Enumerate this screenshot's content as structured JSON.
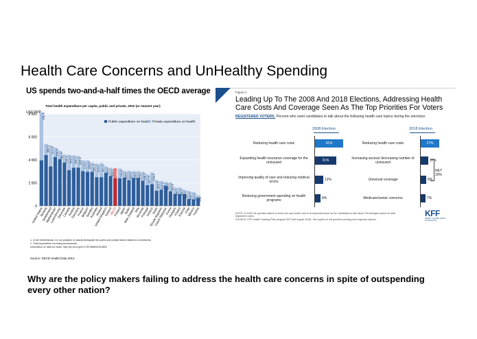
{
  "slide": {
    "title": "Health Care Concerns and UnHealthy Spending",
    "question": "Why are the policy makers failing to address the health care concerns in spite of outspending every other nation?"
  },
  "oecd": {
    "title": "US spends two-and-a-half times the OECD average",
    "subtitle": "Total health expenditure per capita, public and private, 2010 (or nearest year)",
    "unit": "USD PPP",
    "notes": [
      "1.  In the Netherlands, it is not possible to clearly distinguish the public and private share related to investments.",
      "2.  Total expenditure excluding investments.",
      "Information on data for Israel: http://dx.doi.org/10.1787/888932315602"
    ],
    "source": "Source: OECD Health Data 2012.",
    "colors": {
      "public": "#2e5e9c",
      "private": "#a9c2e0",
      "oecd": "#c0282e",
      "plot_bg": "#e8eef7"
    }
  },
  "kff": {
    "figure_label": "Figure 1",
    "title_lines": [
      "Leading Up To The 2008 And 2018 Elections, Addressing Health",
      "Care Costs And Coverage Seen As The Top Priorities For Voters"
    ],
    "subtitle_reg": "REGISTERED VOTERS:",
    "subtitle_rest": " Percent who want candidates to talk about the following health care topics during the elections:",
    "col_2008": "2008 Election",
    "col_2018": "2018 Election",
    "net_label": "NET",
    "net_value": "20%",
    "note_lines": [
      "NOTE: In 2018, the question asked of those who say health care is an important issue for the candidates to talk about. Percentages based on total",
      "registered voters.",
      "SOURCE: KFF Health Tracking Polls (August 2007 and August 2018). See topline for full question wording and response options."
    ],
    "logo_text": "KFF",
    "logo_small": "HENRY J KAISER FAMILY FOUNDATION",
    "colors": {
      "bright": "#1f78c8",
      "dark": "#173a6e",
      "accent": "#1a4f8b"
    }
  },
  "chart_data": [
    {
      "type": "bar",
      "stacked": true,
      "title": "US spends two-and-a-half times the OECD average",
      "subtitle": "Total health expenditure per capita, public and private, 2010 (or nearest year)",
      "ylabel": "USD PPP",
      "ylim": [
        0,
        8000
      ],
      "yticks": [
        "0",
        "2 000",
        "4 000",
        "6 000",
        "8 000"
      ],
      "grid": true,
      "legend": "top-right",
      "categories": [
        "United States",
        "Norway",
        "Switzerland",
        "Netherlands¹",
        "Luxembourg²",
        "Denmark",
        "Canada",
        "Austria",
        "Germany",
        "France",
        "Belgium",
        "Sweden",
        "Australia",
        "Ireland",
        "United Kingdom",
        "Iceland",
        "OECD",
        "Finland",
        "Japan",
        "Spain",
        "New Zealand",
        "Italy",
        "Slovenia",
        "Portugal",
        "Greece",
        "Israel",
        "Slovak Republic",
        "Czech Republic",
        "Korea",
        "Hungary",
        "Poland",
        "Estonia",
        "Chile",
        "Mexico",
        "Turkey"
      ],
      "totals": [
        "8 233",
        "5 388",
        "5 270",
        "5 056",
        "4 786",
        "4 464",
        "4 445",
        "4 395",
        "4 338",
        "3 974",
        "3 969",
        "3 758",
        "3 670",
        "3 718",
        "3 433",
        "3 309",
        "3 268",
        "3 251",
        "3 035",
        "3 056",
        "3 022",
        "3 012",
        "2 964",
        "2 728",
        "2 914",
        "2 239",
        "2 165",
        "2 095",
        "2 035",
        "1 601",
        "1 601",
        "1 389",
        "1 294",
        "1 202",
        "916"
      ],
      "series": [
        {
          "name": "Public expenditure on health",
          "values": [
            3967,
            4423,
            3431,
            4254,
            4062,
            3771,
            3102,
            3317,
            3331,
            3029,
            2958,
            2964,
            2497,
            2500,
            2884,
            2604,
            2406,
            2408,
            2462,
            2244,
            2435,
            2437,
            2178,
            1809,
            1896,
            1313,
            1410,
            1758,
            1272,
            1042,
            1032,
            1042,
            606,
            571,
            695
          ]
        },
        {
          "name": "Private expenditure on health",
          "values": [
            4266,
            965,
            1839,
            802,
            724,
            693,
            1343,
            1078,
            1007,
            945,
            1011,
            794,
            1173,
            1218,
            549,
            705,
            862,
            843,
            573,
            812,
            587,
            575,
            786,
            919,
            1018,
            926,
            755,
            337,
            763,
            559,
            569,
            347,
            688,
            631,
            221
          ]
        }
      ]
    },
    {
      "type": "bar",
      "orientation": "horizontal",
      "title": "Leading Up To The 2008 And 2018 Elections, Addressing Health Care Costs And Coverage Seen As The Top Priorities For Voters",
      "panels": [
        {
          "name": "2008 Election",
          "categories": [
            "Reducing health care costs",
            "Expanding health insurance coverage for the uninsured",
            "Improving quality of care and reducing medical errors",
            "Reducing government spending on health programs"
          ],
          "values": [
            41,
            31,
            12,
            8
          ],
          "labels": [
            "41%",
            "31%",
            "12%",
            "8%"
          ]
        },
        {
          "name": "2018 Election",
          "categories": [
            "Reducing health care costs",
            "Increasing access/ decreasing number of uninsured",
            "Universal coverage",
            "Medicare/senior concerns"
          ],
          "values": [
            27,
            11,
            8,
            7
          ],
          "labels": [
            "27%",
            "11%",
            "8%",
            "7%"
          ]
        }
      ]
    }
  ]
}
